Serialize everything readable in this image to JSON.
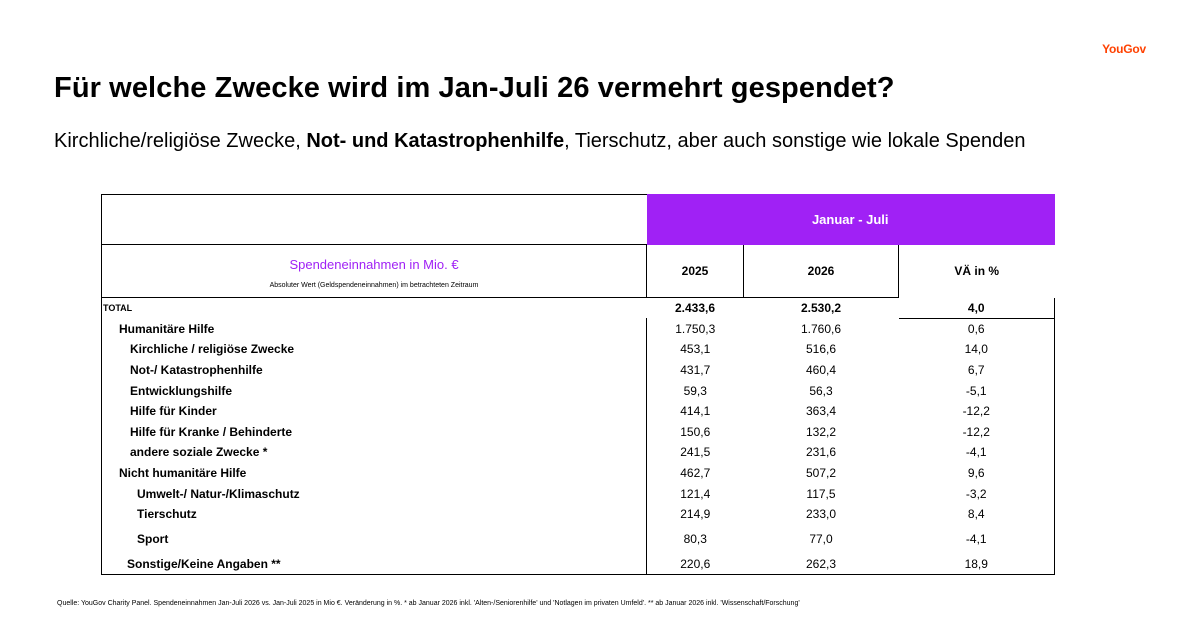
{
  "brand": {
    "logo_text": "YouGov",
    "accent_color": "#a021f5",
    "logo_color": "#ff4101"
  },
  "title": "Für welche Zwecke wird im Jan-Juli 26 vermehrt gespendet?",
  "subtitle": {
    "part1": "Kirchliche/religiöse Zwecke, ",
    "bold": "Not- und Katastrophenhilfe",
    "part2": ", Tierschutz, aber auch sonstige wie lokale Spenden"
  },
  "table": {
    "period_header": "Januar - Juli",
    "measure_label": "Spendeneinnahmen in Mio. €",
    "measure_note": "Absoluter Wert (Geldspendeneinnahmen) im betrachteten Zeitraum",
    "columns": [
      "2025",
      "2026",
      "VÄ in %"
    ],
    "total": {
      "label": "TOTAL",
      "v2025": "2.433,6",
      "v2026": "2.530,2",
      "change": "4,0"
    },
    "rows": [
      {
        "label": "Humanitäre Hilfe",
        "v2025": "1.750,3",
        "v2026": "1.760,6",
        "change": "0,6"
      },
      {
        "label": "Kirchliche / religiöse Zwecke",
        "v2025": "453,1",
        "v2026": "516,6",
        "change": "14,0"
      },
      {
        "label": "Not-/ Katastrophenhilfe",
        "v2025": "431,7",
        "v2026": "460,4",
        "change": "6,7"
      },
      {
        "label": "Entwicklungshilfe",
        "v2025": "59,3",
        "v2026": "56,3",
        "change": "-5,1"
      },
      {
        "label": "Hilfe für Kinder",
        "v2025": "414,1",
        "v2026": "363,4",
        "change": "-12,2"
      },
      {
        "label": "Hilfe für Kranke / Behinderte",
        "v2025": "150,6",
        "v2026": "132,2",
        "change": "-12,2"
      },
      {
        "label": "andere soziale Zwecke *",
        "v2025": "241,5",
        "v2026": "231,6",
        "change": "-4,1"
      },
      {
        "label": "Nicht humanitäre Hilfe",
        "v2025": "462,7",
        "v2026": "507,2",
        "change": "9,6"
      },
      {
        "label": "Umwelt-/ Natur-/Klimaschutz",
        "v2025": "121,4",
        "v2026": "117,5",
        "change": "-3,2"
      },
      {
        "label": "Tierschutz",
        "v2025": "214,9",
        "v2026": "233,0",
        "change": "8,4"
      },
      {
        "label": "Sport",
        "v2025": "80,3",
        "v2026": "77,0",
        "change": "-4,1"
      },
      {
        "label": "Sonstige/Keine Angaben **",
        "v2025": "220,6",
        "v2026": "262,3",
        "change": "18,9"
      }
    ]
  },
  "footnote": "Quelle: YouGov Charity Panel. Spendeneinnahmen Jan-Juli 2026 vs. Jan-Juli 2025 in Mio €. Veränderung in %. * ab Januar 2026 inkl. 'Alten-/Seniorenhilfe' und 'Notlagen im privaten Umfeld'. ** ab Januar 2026 inkl. 'Wissenschaft/Forschung'"
}
